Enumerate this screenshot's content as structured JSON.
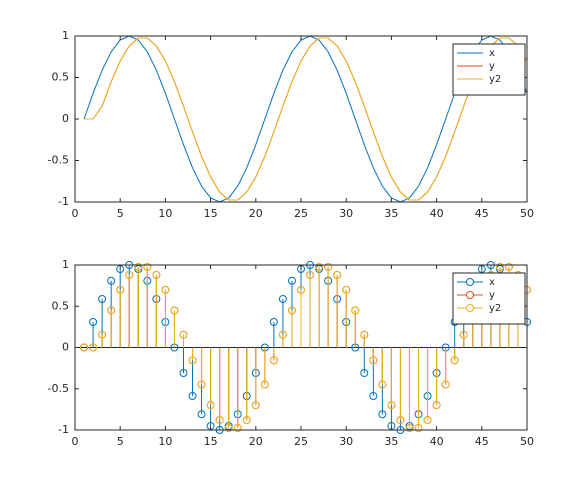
{
  "chart_data": [
    {
      "type": "line",
      "x": [
        1,
        2,
        3,
        4,
        5,
        6,
        7,
        8,
        9,
        10,
        11,
        12,
        13,
        14,
        15,
        16,
        17,
        18,
        19,
        20,
        21,
        22,
        23,
        24,
        25,
        26,
        27,
        28,
        29,
        30,
        31,
        32,
        33,
        34,
        35,
        36,
        37,
        38,
        39,
        40,
        41,
        42,
        43,
        44,
        45,
        46,
        47,
        48,
        49,
        50
      ],
      "series": [
        {
          "name": "x",
          "color": "#0072bd",
          "values": [
            0,
            0.309,
            0.588,
            0.809,
            0.951,
            1,
            0.951,
            0.809,
            0.588,
            0.309,
            0,
            -0.309,
            -0.588,
            -0.809,
            -0.951,
            -1,
            -0.951,
            -0.809,
            -0.588,
            -0.309,
            0,
            0.309,
            0.588,
            0.809,
            0.951,
            1,
            0.951,
            0.809,
            0.588,
            0.309,
            0,
            -0.309,
            -0.588,
            -0.809,
            -0.951,
            -1,
            -0.951,
            -0.809,
            -0.588,
            -0.309,
            0,
            0.309,
            0.588,
            0.809,
            0.951,
            1,
            0.951,
            0.809,
            0.588,
            0.309
          ]
        },
        {
          "name": "y",
          "color": "#d95319",
          "values": [
            0,
            0,
            0.155,
            0.449,
            0.699,
            0.88,
            0.976,
            0.976,
            0.88,
            0.699,
            0.449,
            0.155,
            -0.155,
            -0.449,
            -0.699,
            -0.88,
            -0.976,
            -0.976,
            -0.88,
            -0.699,
            -0.449,
            -0.155,
            0.155,
            0.449,
            0.699,
            0.88,
            0.976,
            0.976,
            0.88,
            0.699,
            0.449,
            0.155,
            -0.155,
            -0.449,
            -0.699,
            -0.88,
            -0.976,
            -0.976,
            -0.88,
            -0.699,
            -0.449,
            -0.155,
            0.155,
            0.449,
            0.699,
            0.88,
            0.976,
            0.976,
            0.88,
            0.699
          ]
        },
        {
          "name": "y2",
          "color": "#edb120",
          "values": [
            0,
            0,
            0.155,
            0.449,
            0.699,
            0.88,
            0.976,
            0.976,
            0.88,
            0.699,
            0.449,
            0.155,
            -0.155,
            -0.449,
            -0.699,
            -0.88,
            -0.976,
            -0.976,
            -0.88,
            -0.699,
            -0.449,
            -0.155,
            0.155,
            0.449,
            0.699,
            0.88,
            0.976,
            0.976,
            0.88,
            0.699,
            0.449,
            0.155,
            -0.155,
            -0.449,
            -0.699,
            -0.88,
            -0.976,
            -0.976,
            -0.88,
            -0.699,
            -0.449,
            -0.155,
            0.155,
            0.449,
            0.699,
            0.88,
            0.976,
            0.976,
            0.88,
            0.699
          ]
        }
      ],
      "xlim": [
        0,
        50
      ],
      "xticks": [
        0,
        5,
        10,
        15,
        20,
        25,
        30,
        35,
        40,
        45,
        50
      ],
      "ylim": [
        -1,
        1
      ],
      "yticks": [
        -1,
        -0.5,
        0,
        0.5,
        1
      ],
      "legend": "northeast"
    },
    {
      "type": "stem",
      "x": [
        1,
        2,
        3,
        4,
        5,
        6,
        7,
        8,
        9,
        10,
        11,
        12,
        13,
        14,
        15,
        16,
        17,
        18,
        19,
        20,
        21,
        22,
        23,
        24,
        25,
        26,
        27,
        28,
        29,
        30,
        31,
        32,
        33,
        34,
        35,
        36,
        37,
        38,
        39,
        40,
        41,
        42,
        43,
        44,
        45,
        46,
        47,
        48,
        49,
        50
      ],
      "series": [
        {
          "name": "x",
          "color": "#0072bd",
          "values": [
            0,
            0.309,
            0.588,
            0.809,
            0.951,
            1,
            0.951,
            0.809,
            0.588,
            0.309,
            0,
            -0.309,
            -0.588,
            -0.809,
            -0.951,
            -1,
            -0.951,
            -0.809,
            -0.588,
            -0.309,
            0,
            0.309,
            0.588,
            0.809,
            0.951,
            1,
            0.951,
            0.809,
            0.588,
            0.309,
            0,
            -0.309,
            -0.588,
            -0.809,
            -0.951,
            -1,
            -0.951,
            -0.809,
            -0.588,
            -0.309,
            0,
            0.309,
            0.588,
            0.809,
            0.951,
            1,
            0.951,
            0.809,
            0.588,
            0.309
          ]
        },
        {
          "name": "y",
          "color": "#d95319",
          "values": [
            0,
            0,
            0.155,
            0.449,
            0.699,
            0.88,
            0.976,
            0.976,
            0.88,
            0.699,
            0.449,
            0.155,
            -0.155,
            -0.449,
            -0.699,
            -0.88,
            -0.976,
            -0.976,
            -0.88,
            -0.699,
            -0.449,
            -0.155,
            0.155,
            0.449,
            0.699,
            0.88,
            0.976,
            0.976,
            0.88,
            0.699,
            0.449,
            0.155,
            -0.155,
            -0.449,
            -0.699,
            -0.88,
            -0.976,
            -0.976,
            -0.88,
            -0.699,
            -0.449,
            -0.155,
            0.155,
            0.449,
            0.699,
            0.88,
            0.976,
            0.976,
            0.88,
            0.699
          ]
        },
        {
          "name": "y2",
          "color": "#edb120",
          "values": [
            0,
            0,
            0.155,
            0.449,
            0.699,
            0.88,
            0.976,
            0.976,
            0.88,
            0.699,
            0.449,
            0.155,
            -0.155,
            -0.449,
            -0.699,
            -0.88,
            -0.976,
            -0.976,
            -0.88,
            -0.699,
            -0.449,
            -0.155,
            0.155,
            0.449,
            0.699,
            0.88,
            0.976,
            0.976,
            0.88,
            0.699,
            0.449,
            0.155,
            -0.155,
            -0.449,
            -0.699,
            -0.88,
            -0.976,
            -0.976,
            -0.88,
            -0.699,
            -0.449,
            -0.155,
            0.155,
            0.449,
            0.699,
            0.88,
            0.976,
            0.976,
            0.88,
            0.699
          ]
        }
      ],
      "xlim": [
        0,
        50
      ],
      "xticks": [
        0,
        5,
        10,
        15,
        20,
        25,
        30,
        35,
        40,
        45,
        50
      ],
      "ylim": [
        -1,
        1
      ],
      "yticks": [
        -1,
        -0.5,
        0,
        0.5,
        1
      ],
      "legend": "northeast"
    }
  ]
}
